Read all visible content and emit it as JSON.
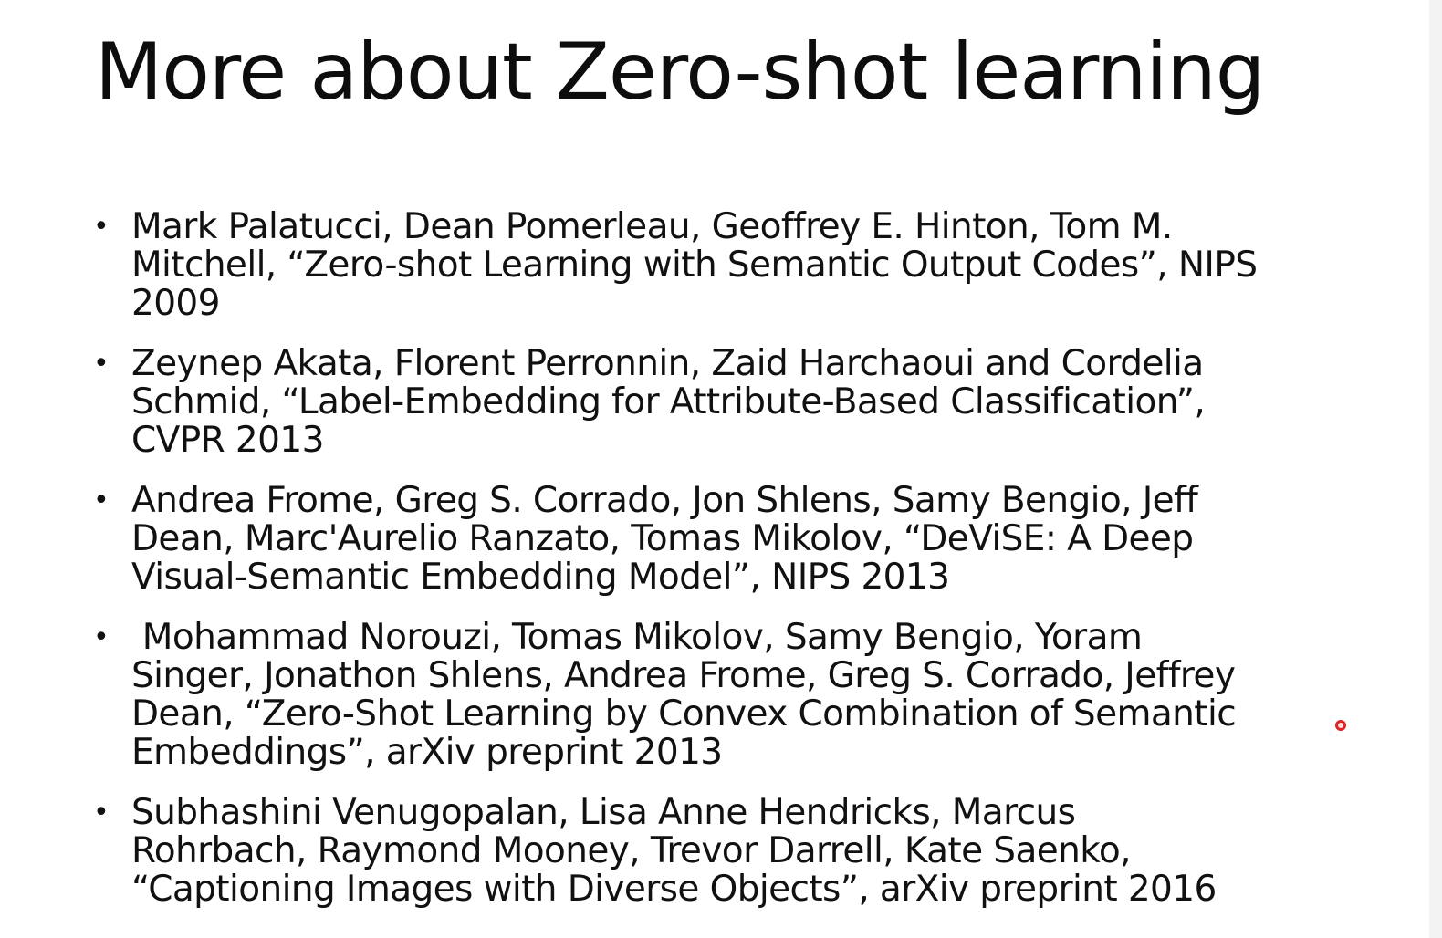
{
  "slide": {
    "title": "More about Zero-shot learning",
    "references": [
      {
        "lines": [
          "Mark Palatucci, Dean Pomerleau, Geoffrey E. Hinton, Tom M.",
          "Mitchell, “Zero-shot Learning with Semantic Output Codes”, NIPS",
          "2009"
        ]
      },
      {
        "lines": [
          "Zeynep Akata, Florent Perronnin, Zaid Harchaoui and Cordelia",
          "Schmid, “Label-Embedding for Attribute-Based Classification”,",
          "CVPR 2013"
        ]
      },
      {
        "lines": [
          "Andrea Frome, Greg S. Corrado, Jon Shlens, Samy Bengio, Jeff",
          "Dean, Marc'Aurelio Ranzato, Tomas Mikolov, “DeViSE: A Deep",
          "Visual-Semantic Embedding Model”, NIPS 2013"
        ]
      },
      {
        "lines": [
          " Mohammad Norouzi, Tomas Mikolov, Samy Bengio, Yoram",
          "Singer, Jonathon Shlens, Andrea Frome, Greg S. Corrado, Jeffrey",
          "Dean, “Zero-Shot Learning by Convex Combination of Semantic",
          "Embeddings”, arXiv preprint 2013"
        ]
      },
      {
        "lines": [
          "Subhashini Venugopalan, Lisa Anne Hendricks, Marcus",
          "Rohrbach, Raymond Mooney, Trevor Darrell, Kate Saenko,",
          "“Captioning Images with Diverse Objects”, arXiv preprint 2016"
        ]
      }
    ],
    "bullet_glyph": "•",
    "colors": {
      "text": "#111111",
      "background": "#ffffff",
      "laser_pointer": "#e02424"
    }
  }
}
